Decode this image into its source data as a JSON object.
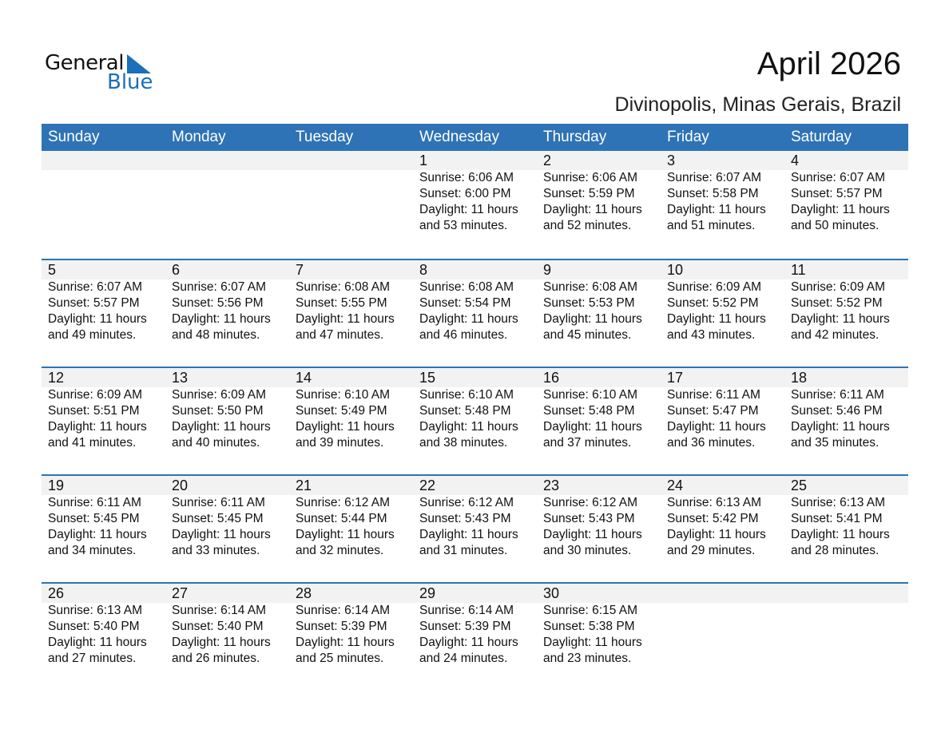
{
  "logo": {
    "text1": "General",
    "text2": "Blue",
    "color": "#1c6fb8"
  },
  "header": {
    "title": "April 2026",
    "location": "Divinopolis, Minas Gerais, Brazil"
  },
  "weekdays": [
    "Sunday",
    "Monday",
    "Tuesday",
    "Wednesday",
    "Thursday",
    "Friday",
    "Saturday"
  ],
  "colors": {
    "header": "#2e73b5",
    "band": "#f2f2f2"
  },
  "weeks": [
    [
      null,
      null,
      null,
      {
        "day": "1",
        "sunrise": "Sunrise: 6:06 AM",
        "sunset": "Sunset: 6:00 PM",
        "daylight1": "Daylight: 11 hours",
        "daylight2": "and 53 minutes."
      },
      {
        "day": "2",
        "sunrise": "Sunrise: 6:06 AM",
        "sunset": "Sunset: 5:59 PM",
        "daylight1": "Daylight: 11 hours",
        "daylight2": "and 52 minutes."
      },
      {
        "day": "3",
        "sunrise": "Sunrise: 6:07 AM",
        "sunset": "Sunset: 5:58 PM",
        "daylight1": "Daylight: 11 hours",
        "daylight2": "and 51 minutes."
      },
      {
        "day": "4",
        "sunrise": "Sunrise: 6:07 AM",
        "sunset": "Sunset: 5:57 PM",
        "daylight1": "Daylight: 11 hours",
        "daylight2": "and 50 minutes."
      }
    ],
    [
      {
        "day": "5",
        "sunrise": "Sunrise: 6:07 AM",
        "sunset": "Sunset: 5:57 PM",
        "daylight1": "Daylight: 11 hours",
        "daylight2": "and 49 minutes."
      },
      {
        "day": "6",
        "sunrise": "Sunrise: 6:07 AM",
        "sunset": "Sunset: 5:56 PM",
        "daylight1": "Daylight: 11 hours",
        "daylight2": "and 48 minutes."
      },
      {
        "day": "7",
        "sunrise": "Sunrise: 6:08 AM",
        "sunset": "Sunset: 5:55 PM",
        "daylight1": "Daylight: 11 hours",
        "daylight2": "and 47 minutes."
      },
      {
        "day": "8",
        "sunrise": "Sunrise: 6:08 AM",
        "sunset": "Sunset: 5:54 PM",
        "daylight1": "Daylight: 11 hours",
        "daylight2": "and 46 minutes."
      },
      {
        "day": "9",
        "sunrise": "Sunrise: 6:08 AM",
        "sunset": "Sunset: 5:53 PM",
        "daylight1": "Daylight: 11 hours",
        "daylight2": "and 45 minutes."
      },
      {
        "day": "10",
        "sunrise": "Sunrise: 6:09 AM",
        "sunset": "Sunset: 5:52 PM",
        "daylight1": "Daylight: 11 hours",
        "daylight2": "and 43 minutes."
      },
      {
        "day": "11",
        "sunrise": "Sunrise: 6:09 AM",
        "sunset": "Sunset: 5:52 PM",
        "daylight1": "Daylight: 11 hours",
        "daylight2": "and 42 minutes."
      }
    ],
    [
      {
        "day": "12",
        "sunrise": "Sunrise: 6:09 AM",
        "sunset": "Sunset: 5:51 PM",
        "daylight1": "Daylight: 11 hours",
        "daylight2": "and 41 minutes."
      },
      {
        "day": "13",
        "sunrise": "Sunrise: 6:09 AM",
        "sunset": "Sunset: 5:50 PM",
        "daylight1": "Daylight: 11 hours",
        "daylight2": "and 40 minutes."
      },
      {
        "day": "14",
        "sunrise": "Sunrise: 6:10 AM",
        "sunset": "Sunset: 5:49 PM",
        "daylight1": "Daylight: 11 hours",
        "daylight2": "and 39 minutes."
      },
      {
        "day": "15",
        "sunrise": "Sunrise: 6:10 AM",
        "sunset": "Sunset: 5:48 PM",
        "daylight1": "Daylight: 11 hours",
        "daylight2": "and 38 minutes."
      },
      {
        "day": "16",
        "sunrise": "Sunrise: 6:10 AM",
        "sunset": "Sunset: 5:48 PM",
        "daylight1": "Daylight: 11 hours",
        "daylight2": "and 37 minutes."
      },
      {
        "day": "17",
        "sunrise": "Sunrise: 6:11 AM",
        "sunset": "Sunset: 5:47 PM",
        "daylight1": "Daylight: 11 hours",
        "daylight2": "and 36 minutes."
      },
      {
        "day": "18",
        "sunrise": "Sunrise: 6:11 AM",
        "sunset": "Sunset: 5:46 PM",
        "daylight1": "Daylight: 11 hours",
        "daylight2": "and 35 minutes."
      }
    ],
    [
      {
        "day": "19",
        "sunrise": "Sunrise: 6:11 AM",
        "sunset": "Sunset: 5:45 PM",
        "daylight1": "Daylight: 11 hours",
        "daylight2": "and 34 minutes."
      },
      {
        "day": "20",
        "sunrise": "Sunrise: 6:11 AM",
        "sunset": "Sunset: 5:45 PM",
        "daylight1": "Daylight: 11 hours",
        "daylight2": "and 33 minutes."
      },
      {
        "day": "21",
        "sunrise": "Sunrise: 6:12 AM",
        "sunset": "Sunset: 5:44 PM",
        "daylight1": "Daylight: 11 hours",
        "daylight2": "and 32 minutes."
      },
      {
        "day": "22",
        "sunrise": "Sunrise: 6:12 AM",
        "sunset": "Sunset: 5:43 PM",
        "daylight1": "Daylight: 11 hours",
        "daylight2": "and 31 minutes."
      },
      {
        "day": "23",
        "sunrise": "Sunrise: 6:12 AM",
        "sunset": "Sunset: 5:43 PM",
        "daylight1": "Daylight: 11 hours",
        "daylight2": "and 30 minutes."
      },
      {
        "day": "24",
        "sunrise": "Sunrise: 6:13 AM",
        "sunset": "Sunset: 5:42 PM",
        "daylight1": "Daylight: 11 hours",
        "daylight2": "and 29 minutes."
      },
      {
        "day": "25",
        "sunrise": "Sunrise: 6:13 AM",
        "sunset": "Sunset: 5:41 PM",
        "daylight1": "Daylight: 11 hours",
        "daylight2": "and 28 minutes."
      }
    ],
    [
      {
        "day": "26",
        "sunrise": "Sunrise: 6:13 AM",
        "sunset": "Sunset: 5:40 PM",
        "daylight1": "Daylight: 11 hours",
        "daylight2": "and 27 minutes."
      },
      {
        "day": "27",
        "sunrise": "Sunrise: 6:14 AM",
        "sunset": "Sunset: 5:40 PM",
        "daylight1": "Daylight: 11 hours",
        "daylight2": "and 26 minutes."
      },
      {
        "day": "28",
        "sunrise": "Sunrise: 6:14 AM",
        "sunset": "Sunset: 5:39 PM",
        "daylight1": "Daylight: 11 hours",
        "daylight2": "and 25 minutes."
      },
      {
        "day": "29",
        "sunrise": "Sunrise: 6:14 AM",
        "sunset": "Sunset: 5:39 PM",
        "daylight1": "Daylight: 11 hours",
        "daylight2": "and 24 minutes."
      },
      {
        "day": "30",
        "sunrise": "Sunrise: 6:15 AM",
        "sunset": "Sunset: 5:38 PM",
        "daylight1": "Daylight: 11 hours",
        "daylight2": "and 23 minutes."
      },
      null,
      null
    ]
  ]
}
